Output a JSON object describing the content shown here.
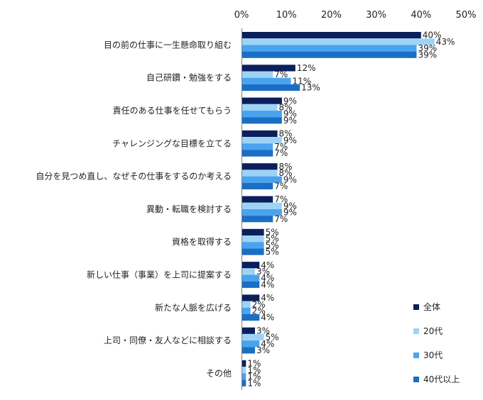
{
  "chart_data": {
    "type": "bar",
    "orientation": "horizontal",
    "categories": [
      "目の前の仕事に一生懸命取り組む",
      "自己研鑽・勉強をする",
      "責任のある仕事を任せてもらう",
      "チャレンジングな目標を立てる",
      "自分を見つめ直し、なぜその仕事をするのか考える",
      "異動・転職を検討する",
      "資格を取得する",
      "新しい仕事（事業）を上司に提案する",
      "新たな人脈を広げる",
      "上司・同僚・友人などに相談する",
      "その他"
    ],
    "series": [
      {
        "name": "全体",
        "color": "#0b1f5c",
        "values": [
          40,
          12,
          9,
          8,
          8,
          7,
          5,
          4,
          4,
          3,
          1
        ]
      },
      {
        "name": "20代",
        "color": "#9fd3f5",
        "values": [
          43,
          7,
          8,
          9,
          8,
          9,
          5,
          3,
          2,
          5,
          1
        ]
      },
      {
        "name": "30代",
        "color": "#4aa3ee",
        "values": [
          39,
          11,
          9,
          7,
          9,
          9,
          5,
          4,
          2,
          4,
          1
        ]
      },
      {
        "name": "40代以上",
        "color": "#1a6fc4",
        "values": [
          39,
          13,
          9,
          7,
          7,
          7,
          5,
          4,
          4,
          3,
          1
        ]
      }
    ],
    "ticks": [
      "0%",
      "10%",
      "20%",
      "30%",
      "40%",
      "50%"
    ],
    "value_suffix": "%",
    "xlim": [
      0,
      50
    ],
    "legend_position": "right"
  }
}
